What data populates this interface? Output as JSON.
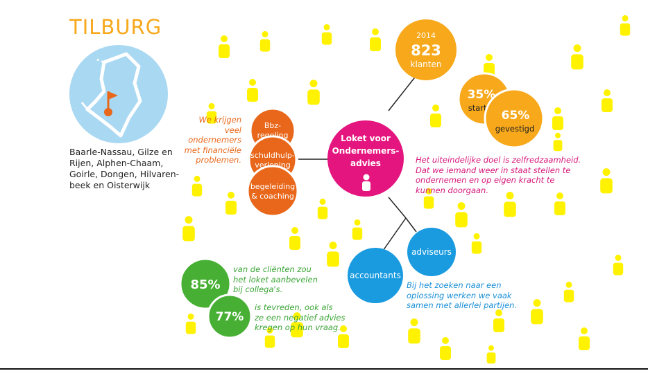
{
  "title": "TILBURG",
  "region": "Baarle-Nassau, Gilze en Rijen, Alphen-Chaam, Goirle, Dongen, Hilvaren-beek en Oisterwijk",
  "center": {
    "line1": "Loket voor",
    "line2": "Ondernemers-",
    "line3": "advies",
    "icon": "person-icon"
  },
  "stats": {
    "year": "2014",
    "clients_value": "823",
    "clients_label": "klanten",
    "starter_value": "35%",
    "starter_label": "starter",
    "gevestigd_value": "65%",
    "gevestigd_label": "gevestigd"
  },
  "services": {
    "bbz_line1": "Bbz-",
    "bbz_line2": "regeling",
    "schuld_line1": "schuldhulp-",
    "schuld_line2": "verlening",
    "begeleiding_line1": "begeleiding",
    "begeleiding_line2": "& coaching"
  },
  "partners": {
    "accountants": "accountants",
    "adviseurs": "adviseurs"
  },
  "notes": {
    "financial": [
      "We krijgen veel",
      "ondernemers",
      "met financiële",
      "problemen."
    ],
    "goal": [
      "Het uiteindelijke doel is zelfredzaamheid.",
      "Dat we iemand weer in staat stellen te",
      "ondernemen en op eigen kracht te",
      "kunnen doorgaan."
    ],
    "partners": [
      "Bij het zoeken naar een",
      "oplossing werken we vaak",
      "samen met allerlei partijen."
    ],
    "recommend": [
      "van de cliënten zou",
      "het loket aanbevelen",
      "bij collega's."
    ],
    "satisfied": [
      "is tevreden, ook als",
      "ze een negatief advies",
      "kregen op hun vraag."
    ]
  },
  "percent_85": "85%",
  "percent_77": "77%",
  "colors": {
    "orange": "#f7a81b",
    "dark_orange": "#e8671a",
    "pink": "#e5157f",
    "blue": "#1a9be0",
    "green": "#47b034",
    "yellow": "#fff200",
    "map_blue": "#a9d8f2"
  }
}
